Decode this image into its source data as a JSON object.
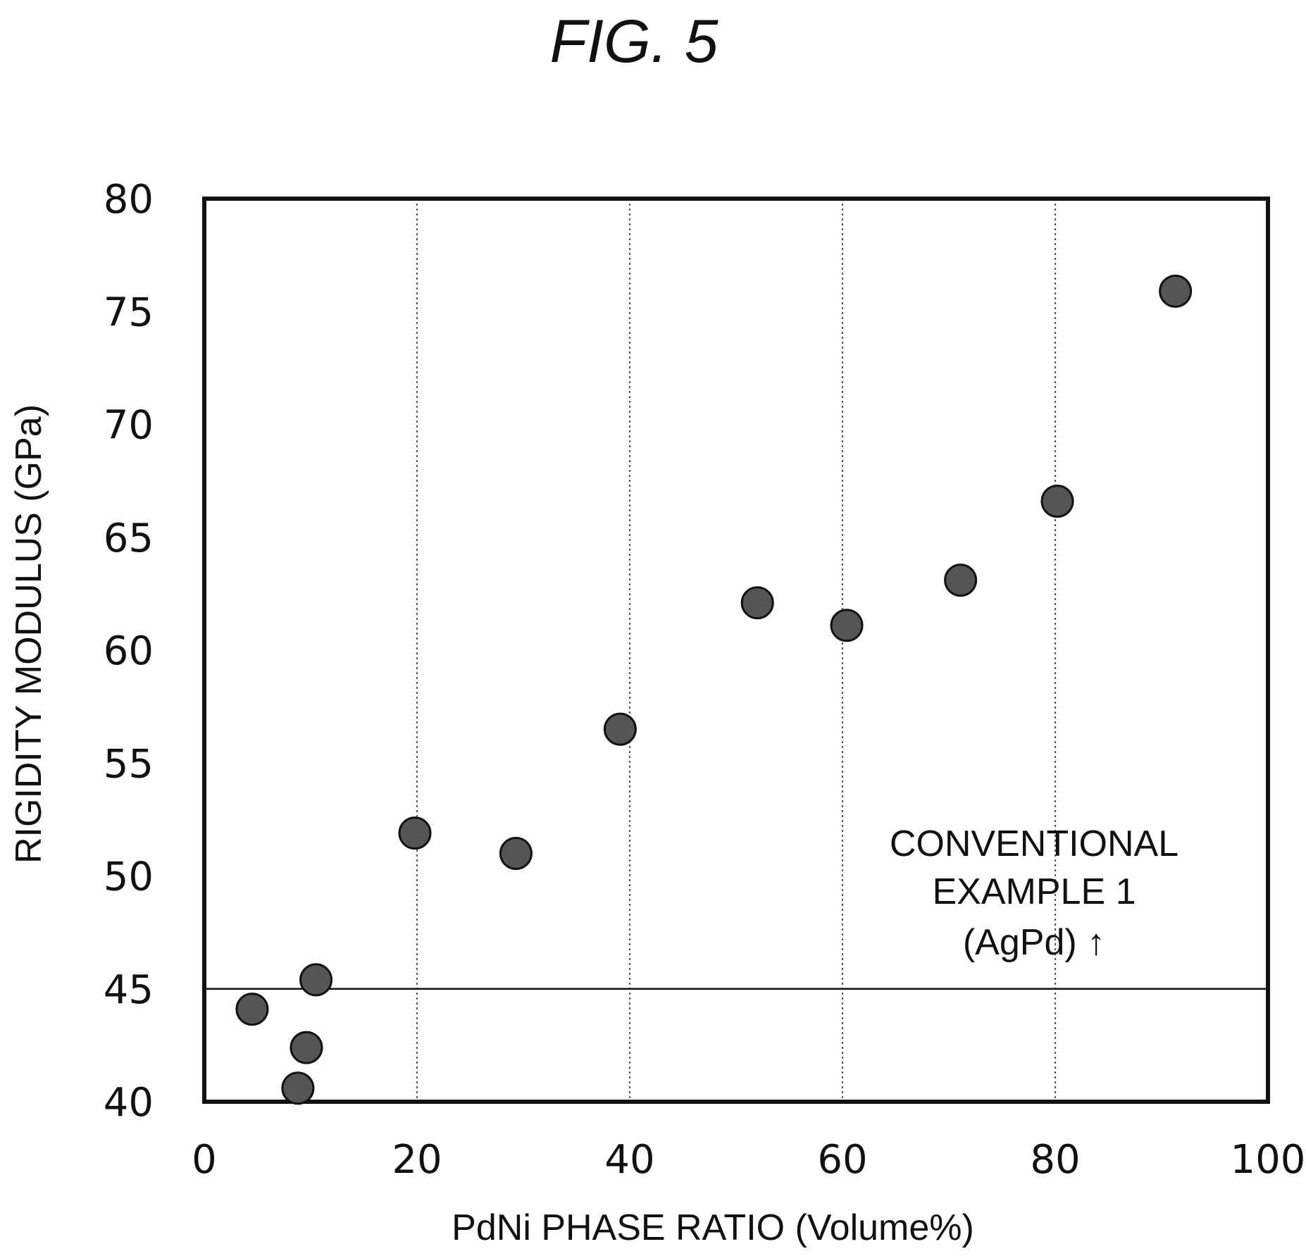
{
  "figure_label": "FIG. 5",
  "chart_data": {
    "type": "scatter",
    "title": "",
    "xlabel": "PdNi PHASE RATIO (Volume%)",
    "ylabel": "RIGIDITY MODULUS (GPa)",
    "xlim": [
      0,
      100
    ],
    "ylim": [
      40,
      80
    ],
    "x_ticks": [
      "0",
      "20",
      "40",
      "60",
      "80",
      "100"
    ],
    "y_ticks": [
      "40",
      "45",
      "50",
      "55",
      "60",
      "65",
      "70",
      "75",
      "80"
    ],
    "grid": "vertical dotted at 20, 40, 60, 80",
    "points": [
      {
        "x": 4.5,
        "y": 44.1
      },
      {
        "x": 8.8,
        "y": 40.6
      },
      {
        "x": 9.6,
        "y": 42.4
      },
      {
        "x": 10.5,
        "y": 45.4
      },
      {
        "x": 19.8,
        "y": 51.9
      },
      {
        "x": 29.3,
        "y": 51.0
      },
      {
        "x": 39.1,
        "y": 56.5
      },
      {
        "x": 52.0,
        "y": 62.1
      },
      {
        "x": 60.4,
        "y": 61.1
      },
      {
        "x": 71.1,
        "y": 63.1
      },
      {
        "x": 80.2,
        "y": 66.6
      },
      {
        "x": 91.3,
        "y": 75.9
      }
    ],
    "reference_line": {
      "y": 45
    },
    "annotation": [
      "CONVENTIONAL",
      "EXAMPLE 1",
      "(AgPd) ↑"
    ],
    "marker_color": "#555555",
    "frame_color": "#111111"
  }
}
